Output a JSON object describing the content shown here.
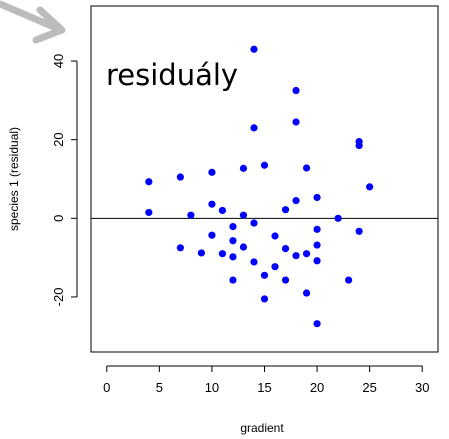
{
  "chart_data": {
    "type": "scatter",
    "title": "",
    "xlabel": "gradient",
    "ylabel": "species 1 (residual)",
    "xlim": [
      -1.5,
      31.5
    ],
    "ylim": [
      -34,
      54
    ],
    "xticks": [
      0,
      5,
      10,
      15,
      20,
      25,
      30
    ],
    "yticks": [
      -20,
      0,
      20,
      40
    ],
    "xtick_labels": [
      "0",
      "5",
      "10",
      "15",
      "20",
      "25",
      "30"
    ],
    "ytick_labels": [
      "-20",
      "0",
      "20",
      "40"
    ],
    "reference_line_y": 0,
    "grid": false,
    "annotation": "residuály",
    "point_color": "#0000ff",
    "points": [
      {
        "x": 4,
        "y": 9.3
      },
      {
        "x": 4,
        "y": 1.5
      },
      {
        "x": 7,
        "y": 10.5
      },
      {
        "x": 7,
        "y": -7.5
      },
      {
        "x": 8,
        "y": 0.8
      },
      {
        "x": 9,
        "y": -8.8
      },
      {
        "x": 10,
        "y": 11.7
      },
      {
        "x": 10,
        "y": 3.6
      },
      {
        "x": 10,
        "y": -4.3
      },
      {
        "x": 11,
        "y": 2
      },
      {
        "x": 11,
        "y": -9
      },
      {
        "x": 12,
        "y": -2.1
      },
      {
        "x": 12,
        "y": -5.7
      },
      {
        "x": 12,
        "y": -9.8
      },
      {
        "x": 12,
        "y": -15.7
      },
      {
        "x": 13,
        "y": 12.7
      },
      {
        "x": 13,
        "y": 0.8
      },
      {
        "x": 13,
        "y": -7.3
      },
      {
        "x": 14,
        "y": 43
      },
      {
        "x": 14,
        "y": 23
      },
      {
        "x": 14,
        "y": -1.2
      },
      {
        "x": 14,
        "y": -11.1
      },
      {
        "x": 15,
        "y": 13.5
      },
      {
        "x": 15,
        "y": -14.5
      },
      {
        "x": 15,
        "y": -20.5
      },
      {
        "x": 16,
        "y": -4.5
      },
      {
        "x": 16,
        "y": -12.3
      },
      {
        "x": 17,
        "y": 2.2
      },
      {
        "x": 17,
        "y": -7.7
      },
      {
        "x": 17,
        "y": -15.7
      },
      {
        "x": 18,
        "y": 32.5
      },
      {
        "x": 18,
        "y": 24.5
      },
      {
        "x": 18,
        "y": 4.5
      },
      {
        "x": 18,
        "y": -9.5
      },
      {
        "x": 19,
        "y": 12.8
      },
      {
        "x": 19,
        "y": -9
      },
      {
        "x": 19,
        "y": -19
      },
      {
        "x": 20,
        "y": 5.3
      },
      {
        "x": 20,
        "y": -2.8
      },
      {
        "x": 20,
        "y": -6.8
      },
      {
        "x": 20,
        "y": -10.8
      },
      {
        "x": 20,
        "y": -26.8
      },
      {
        "x": 22,
        "y": 0
      },
      {
        "x": 23,
        "y": -15.7
      },
      {
        "x": 24,
        "y": 19.5
      },
      {
        "x": 24,
        "y": 18.5
      },
      {
        "x": 24,
        "y": -3.3
      },
      {
        "x": 25,
        "y": 8
      }
    ]
  }
}
